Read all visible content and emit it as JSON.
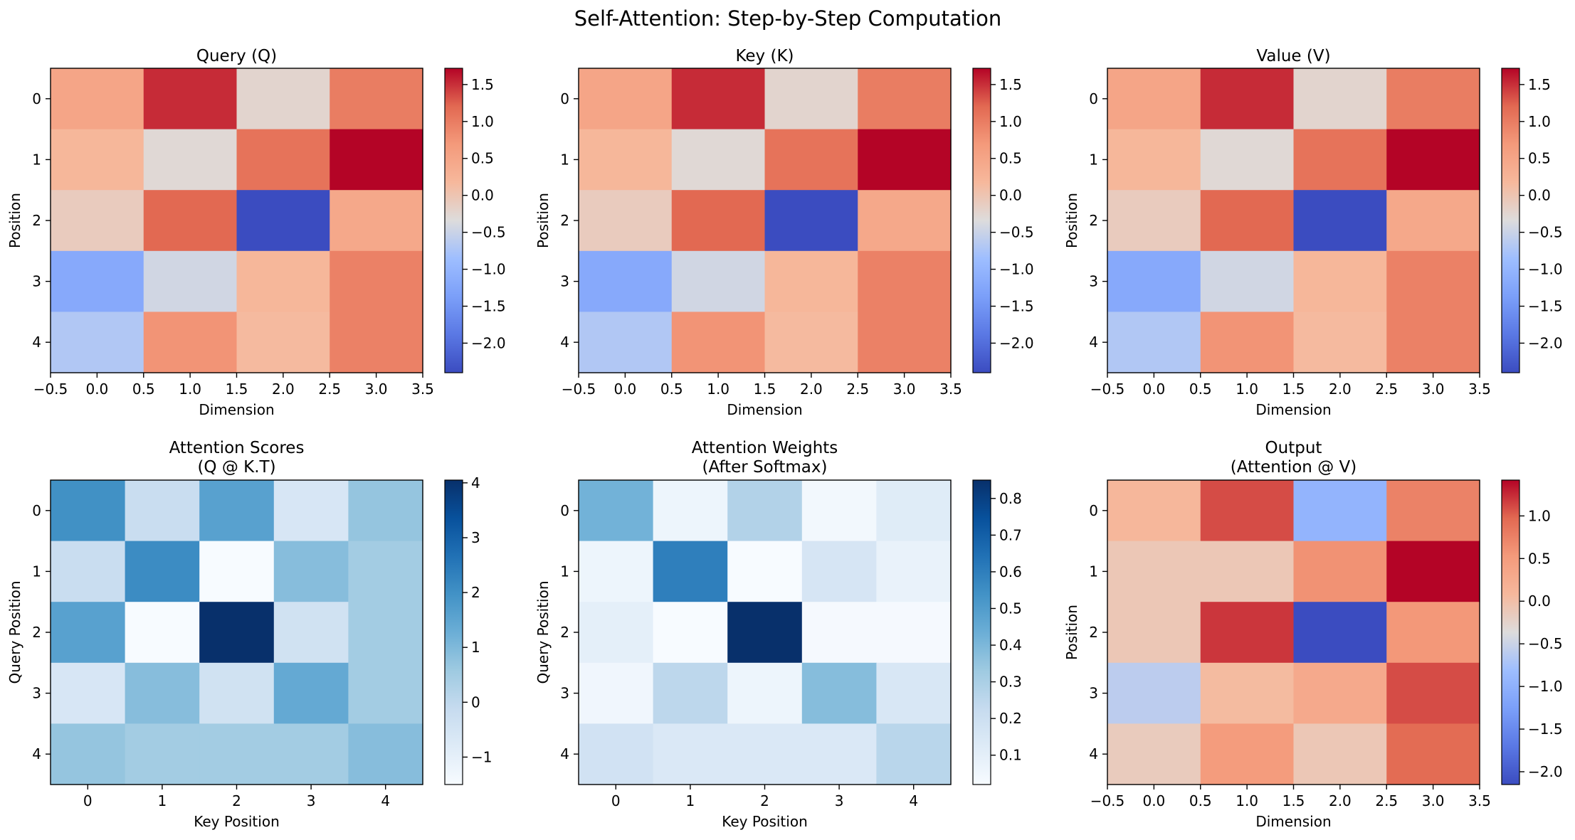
{
  "figure": {
    "title": "Self-Attention: Step-by-Step Computation"
  },
  "chart_data": [
    {
      "type": "heatmap",
      "title": "Query (Q)",
      "xlabel": "Dimension",
      "ylabel": "Position",
      "colormap": "coolwarm",
      "xlim": [
        -0.5,
        3.5
      ],
      "xticks": [
        "−0.5",
        "0.0",
        "0.5",
        "1.0",
        "1.5",
        "2.0",
        "2.5",
        "3.0",
        "3.5"
      ],
      "yticks": [
        "0",
        "1",
        "2",
        "3",
        "4"
      ],
      "vmin": -2.4,
      "vmax": 1.72,
      "colorbar_ticks": [
        "1.5",
        "1.0",
        "0.5",
        "0.0",
        "−0.5",
        "−1.0",
        "−1.5",
        "−2.0"
      ],
      "values": [
        [
          0.5,
          1.52,
          -0.23,
          1.0
        ],
        [
          0.2,
          -0.28,
          1.1,
          1.72
        ],
        [
          -0.1,
          1.2,
          -2.4,
          0.45
        ],
        [
          -1.2,
          -0.45,
          0.2,
          0.95
        ],
        [
          -0.7,
          0.75,
          0.15,
          0.95
        ]
      ]
    },
    {
      "type": "heatmap",
      "title": "Key (K)",
      "xlabel": "Dimension",
      "ylabel": "Position",
      "colormap": "coolwarm",
      "xlim": [
        -0.5,
        3.5
      ],
      "xticks": [
        "−0.5",
        "0.0",
        "0.5",
        "1.0",
        "1.5",
        "2.0",
        "2.5",
        "3.0",
        "3.5"
      ],
      "yticks": [
        "0",
        "1",
        "2",
        "3",
        "4"
      ],
      "vmin": -2.4,
      "vmax": 1.72,
      "colorbar_ticks": [
        "1.5",
        "1.0",
        "0.5",
        "0.0",
        "−0.5",
        "−1.0",
        "−1.5",
        "−2.0"
      ],
      "values": [
        [
          0.5,
          1.52,
          -0.23,
          1.0
        ],
        [
          0.2,
          -0.28,
          1.1,
          1.72
        ],
        [
          -0.1,
          1.2,
          -2.4,
          0.45
        ],
        [
          -1.2,
          -0.45,
          0.2,
          0.95
        ],
        [
          -0.7,
          0.75,
          0.15,
          0.95
        ]
      ]
    },
    {
      "type": "heatmap",
      "title": "Value (V)",
      "xlabel": "Dimension",
      "ylabel": "Position",
      "colormap": "coolwarm",
      "xlim": [
        -0.5,
        3.5
      ],
      "xticks": [
        "−0.5",
        "0.0",
        "0.5",
        "1.0",
        "1.5",
        "2.0",
        "2.5",
        "3.0",
        "3.5"
      ],
      "yticks": [
        "0",
        "1",
        "2",
        "3",
        "4"
      ],
      "vmin": -2.4,
      "vmax": 1.72,
      "colorbar_ticks": [
        "1.5",
        "1.0",
        "0.5",
        "0.0",
        "−0.5",
        "−1.0",
        "−1.5",
        "−2.0"
      ],
      "values": [
        [
          0.5,
          1.52,
          -0.23,
          1.0
        ],
        [
          0.2,
          -0.28,
          1.1,
          1.72
        ],
        [
          -0.1,
          1.2,
          -2.4,
          0.45
        ],
        [
          -1.2,
          -0.45,
          0.2,
          0.95
        ],
        [
          -0.7,
          0.75,
          0.15,
          0.95
        ]
      ]
    },
    {
      "type": "heatmap",
      "title": "Attention Scores\n(Q @ K.T)",
      "xlabel": "Key Position",
      "ylabel": "Query Position",
      "colormap": "Blues",
      "xticks": [
        "0",
        "1",
        "2",
        "3",
        "4"
      ],
      "yticks": [
        "0",
        "1",
        "2",
        "3",
        "4"
      ],
      "vmin": -1.5,
      "vmax": 4.05,
      "colorbar_ticks": [
        "4",
        "3",
        "2",
        "1",
        "0",
        "−1"
      ],
      "values": [
        [
          2.0,
          -0.2,
          1.6,
          -0.6,
          0.7
        ],
        [
          -0.2,
          2.1,
          -1.5,
          0.9,
          0.5
        ],
        [
          1.6,
          -1.5,
          4.05,
          -0.4,
          0.5
        ],
        [
          -0.6,
          0.9,
          -0.4,
          1.4,
          0.5
        ],
        [
          0.7,
          0.5,
          0.5,
          0.5,
          0.9
        ]
      ]
    },
    {
      "type": "heatmap",
      "title": "Attention Weights\n(After Softmax)",
      "xlabel": "Key Position",
      "ylabel": "Query Position",
      "colormap": "Blues",
      "xticks": [
        "0",
        "1",
        "2",
        "3",
        "4"
      ],
      "yticks": [
        "0",
        "1",
        "2",
        "3",
        "4"
      ],
      "vmin": 0.02,
      "vmax": 0.85,
      "colorbar_ticks": [
        "0.8",
        "0.7",
        "0.6",
        "0.5",
        "0.4",
        "0.3",
        "0.2",
        "0.1"
      ],
      "values": [
        [
          0.42,
          0.06,
          0.28,
          0.04,
          0.12
        ],
        [
          0.06,
          0.6,
          0.02,
          0.16,
          0.08
        ],
        [
          0.1,
          0.02,
          0.85,
          0.03,
          0.03
        ],
        [
          0.05,
          0.25,
          0.06,
          0.38,
          0.15
        ],
        [
          0.18,
          0.14,
          0.14,
          0.14,
          0.26
        ]
      ]
    },
    {
      "type": "heatmap",
      "title": "Output\n(Attention @ V)",
      "xlabel": "Dimension",
      "ylabel": "Position",
      "colormap": "coolwarm",
      "xlim": [
        -0.5,
        3.5
      ],
      "xticks": [
        "−0.5",
        "0.0",
        "0.5",
        "1.0",
        "1.5",
        "2.0",
        "2.5",
        "3.0",
        "3.5"
      ],
      "yticks": [
        "0",
        "1",
        "2",
        "3",
        "4"
      ],
      "vmin": -2.15,
      "vmax": 1.42,
      "colorbar_ticks": [
        "1.0",
        "0.5",
        "0.0",
        "−0.5",
        "−1.0",
        "−1.5",
        "−2.0"
      ],
      "values": [
        [
          0.1,
          1.1,
          -0.95,
          0.75
        ],
        [
          -0.1,
          -0.1,
          0.6,
          1.42
        ],
        [
          -0.1,
          1.2,
          -2.15,
          0.55
        ],
        [
          -0.6,
          0.05,
          0.3,
          1.1
        ],
        [
          -0.15,
          0.5,
          -0.1,
          0.95
        ]
      ]
    }
  ]
}
